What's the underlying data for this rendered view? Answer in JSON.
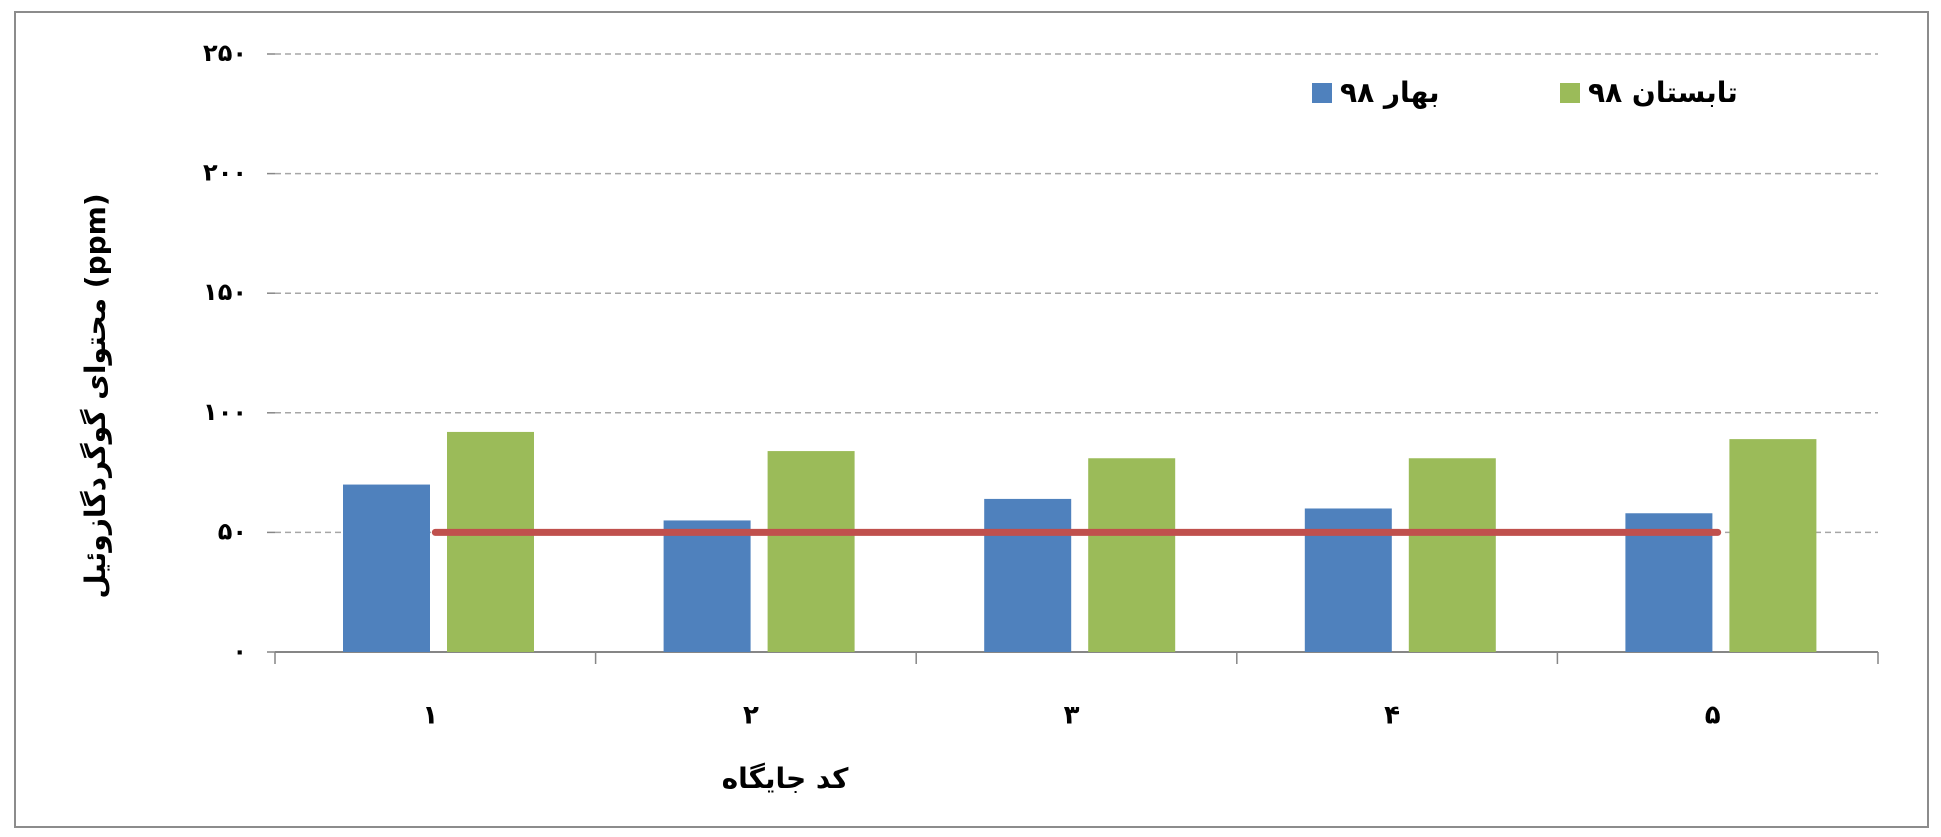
{
  "chart_data": {
    "type": "bar",
    "y_label": "محتوای گوگردگازوئیل (ppm)",
    "x_label": "کد جایگاه",
    "categories": [
      "۱",
      "۲",
      "۳",
      "۴",
      "۵"
    ],
    "series": [
      {
        "name": "بهار ۹۸",
        "color": "#4f81bd",
        "values": [
          70,
          55,
          64,
          60,
          58
        ]
      },
      {
        "name": "تابستان ۹۸",
        "color": "#9bbb59",
        "values": [
          92,
          84,
          81,
          81,
          89
        ]
      }
    ],
    "reference_line": {
      "value": 50,
      "color": "#c0504d"
    },
    "ylim": [
      0,
      250
    ],
    "yticks": [
      {
        "value": 0,
        "label": "۰"
      },
      {
        "value": 50,
        "label": "۵۰"
      },
      {
        "value": 100,
        "label": "۱۰۰"
      },
      {
        "value": 150,
        "label": "۱۵۰"
      },
      {
        "value": 200,
        "label": "۲۰۰"
      },
      {
        "value": 250,
        "label": "۲۵۰"
      }
    ],
    "grid": true,
    "legend": "top-right"
  }
}
